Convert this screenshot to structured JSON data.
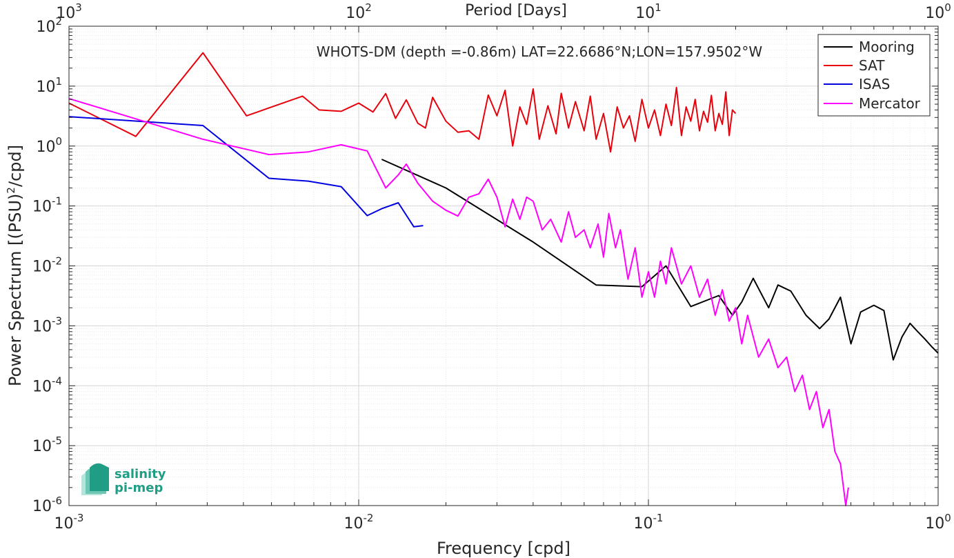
{
  "chart_data": {
    "type": "line",
    "title": "WHOTS-DM (depth =-0.86m) LAT=22.6686°N;LON=157.9502°W",
    "xlabel": "Frequency [cpd]",
    "ylabel": "Power Spectrum [(PSU)",
    "ylabel_sup": "2",
    "ylabel_tail": "/cpd]",
    "top_xlabel": "Period [Days]",
    "xscale": "log",
    "yscale": "log",
    "xlim": [
      0.001,
      1
    ],
    "ylim": [
      1e-06,
      100
    ],
    "grid": true,
    "legend_position": "top-right",
    "x_ticks": [
      {
        "base": "10",
        "exp": "-3"
      },
      {
        "base": "10",
        "exp": "-2"
      },
      {
        "base": "10",
        "exp": "-1"
      },
      {
        "base": "10",
        "exp": "0"
      }
    ],
    "y_ticks": [
      {
        "base": "10",
        "exp": "-6"
      },
      {
        "base": "10",
        "exp": "-5"
      },
      {
        "base": "10",
        "exp": "-4"
      },
      {
        "base": "10",
        "exp": "-3"
      },
      {
        "base": "10",
        "exp": "-2"
      },
      {
        "base": "10",
        "exp": "-1"
      },
      {
        "base": "10",
        "exp": "0"
      },
      {
        "base": "10",
        "exp": "1"
      },
      {
        "base": "10",
        "exp": "2"
      }
    ],
    "top_ticks": [
      {
        "base": "10",
        "exp": "3"
      },
      {
        "base": "10",
        "exp": "2"
      },
      {
        "base": "10",
        "exp": "1"
      },
      {
        "base": "10",
        "exp": "0"
      }
    ],
    "series": [
      {
        "name": "Mooring",
        "color": "#000000",
        "x": [
          0.012,
          0.02,
          0.04,
          0.066,
          0.095,
          0.115,
          0.14,
          0.175,
          0.195,
          0.21,
          0.23,
          0.26,
          0.28,
          0.31,
          0.35,
          0.39,
          0.42,
          0.46,
          0.5,
          0.54,
          0.6,
          0.65,
          0.7,
          0.75,
          0.8,
          0.85,
          0.9,
          0.95,
          1.0
        ],
        "y": [
          0.6,
          0.2,
          0.025,
          0.0048,
          0.0045,
          0.01,
          0.0021,
          0.0032,
          0.0015,
          0.0025,
          0.0062,
          0.002,
          0.0048,
          0.0038,
          0.0015,
          0.0009,
          0.0013,
          0.003,
          0.0005,
          0.0017,
          0.0022,
          0.0018,
          0.00027,
          0.00065,
          0.0011,
          0.0008,
          0.0006,
          0.00045,
          0.00035
        ]
      },
      {
        "name": "SAT",
        "color": "#e8000b",
        "x": [
          0.001,
          0.0017,
          0.0029,
          0.0041,
          0.0064,
          0.0073,
          0.0087,
          0.01,
          0.0112,
          0.0124,
          0.0134,
          0.0146,
          0.016,
          0.017,
          0.018,
          0.02,
          0.022,
          0.024,
          0.026,
          0.028,
          0.03,
          0.032,
          0.034,
          0.036,
          0.038,
          0.04,
          0.042,
          0.045,
          0.048,
          0.05,
          0.053,
          0.056,
          0.06,
          0.063,
          0.066,
          0.07,
          0.074,
          0.078,
          0.082,
          0.086,
          0.09,
          0.095,
          0.1,
          0.105,
          0.11,
          0.115,
          0.12,
          0.125,
          0.13,
          0.135,
          0.14,
          0.145,
          0.15,
          0.155,
          0.16,
          0.165,
          0.17,
          0.175,
          0.18,
          0.185,
          0.19,
          0.195,
          0.2
        ],
        "y": [
          5.2,
          1.45,
          36,
          3.2,
          6.8,
          4.0,
          3.8,
          5.2,
          3.7,
          7.5,
          2.9,
          5.9,
          2.4,
          2.0,
          6.5,
          2.6,
          1.7,
          1.8,
          1.3,
          7.1,
          3.2,
          8.5,
          1.0,
          4.5,
          2.3,
          9.0,
          1.3,
          4.7,
          1.6,
          7.6,
          2.0,
          5.5,
          1.8,
          6.8,
          1.3,
          3.5,
          0.8,
          4.5,
          2.0,
          3.2,
          1.2,
          6.0,
          2.0,
          4.0,
          1.5,
          5.0,
          2.2,
          9.5,
          1.5,
          4.5,
          2.6,
          6.0,
          1.8,
          3.8,
          2.5,
          7.0,
          1.8,
          3.5,
          2.3,
          8.0,
          1.5,
          4.0,
          3.5
        ]
      },
      {
        "name": "ISAS",
        "color": "#0000e0",
        "x": [
          0.001,
          0.0029,
          0.0049,
          0.0067,
          0.0087,
          0.0107,
          0.012,
          0.0137,
          0.0155,
          0.0167
        ],
        "y": [
          3.1,
          2.2,
          0.29,
          0.26,
          0.21,
          0.069,
          0.09,
          0.113,
          0.045,
          0.047
        ]
      },
      {
        "name": "Mercator",
        "color": "#ff00ff",
        "x": [
          0.001,
          0.0029,
          0.0049,
          0.0067,
          0.0087,
          0.0107,
          0.0124,
          0.0137,
          0.0146,
          0.016,
          0.018,
          0.02,
          0.022,
          0.024,
          0.026,
          0.028,
          0.03,
          0.032,
          0.034,
          0.036,
          0.038,
          0.04,
          0.043,
          0.046,
          0.05,
          0.053,
          0.056,
          0.06,
          0.063,
          0.067,
          0.07,
          0.073,
          0.077,
          0.08,
          0.085,
          0.09,
          0.095,
          0.1,
          0.105,
          0.11,
          0.115,
          0.12,
          0.13,
          0.14,
          0.15,
          0.16,
          0.17,
          0.18,
          0.19,
          0.2,
          0.21,
          0.22,
          0.24,
          0.26,
          0.28,
          0.3,
          0.32,
          0.34,
          0.36,
          0.38,
          0.4,
          0.42,
          0.44,
          0.46,
          0.48,
          0.49
        ],
        "y": [
          6.2,
          1.3,
          0.72,
          0.8,
          1.05,
          0.83,
          0.2,
          0.33,
          0.5,
          0.24,
          0.12,
          0.085,
          0.068,
          0.14,
          0.16,
          0.28,
          0.14,
          0.045,
          0.13,
          0.06,
          0.14,
          0.12,
          0.04,
          0.06,
          0.025,
          0.08,
          0.03,
          0.04,
          0.02,
          0.05,
          0.014,
          0.075,
          0.02,
          0.04,
          0.006,
          0.02,
          0.003,
          0.008,
          0.003,
          0.012,
          0.005,
          0.02,
          0.005,
          0.01,
          0.003,
          0.006,
          0.0015,
          0.004,
          0.0012,
          0.002,
          0.0005,
          0.0015,
          0.0003,
          0.0006,
          0.0002,
          0.0003,
          8e-05,
          0.00015,
          4e-05,
          8e-05,
          2e-05,
          4e-05,
          8e-06,
          5e-06,
          1e-06,
          2e-06
        ]
      }
    ]
  },
  "logo": {
    "line1": "salinity",
    "line2": "pi-mep"
  }
}
